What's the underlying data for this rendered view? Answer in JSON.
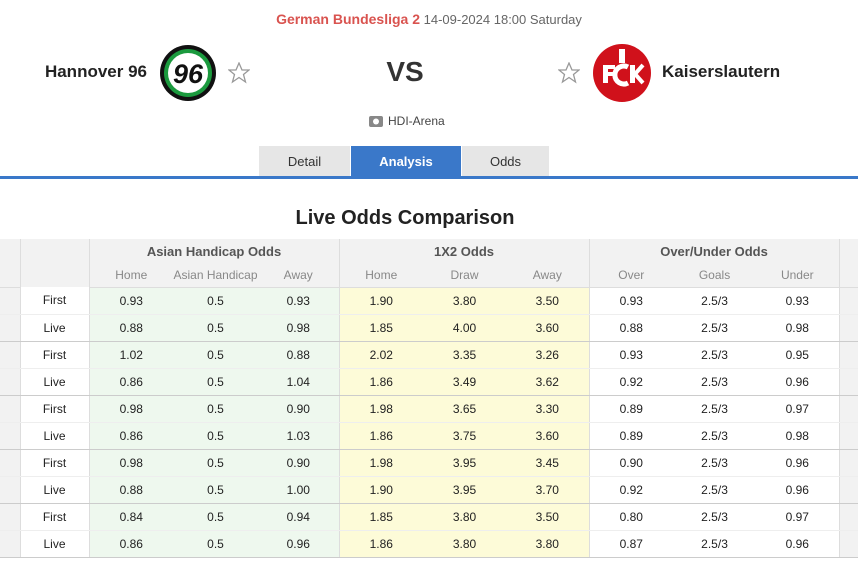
{
  "header": {
    "league": "German Bundesliga 2",
    "datetime": "14-09-2024 18:00 Saturday",
    "home_team": "Hannover 96",
    "home_logo_text": "96",
    "vs": "VS",
    "away_team": "Kaiserslautern",
    "venue": "HDI-Arena"
  },
  "tabs": [
    "Detail",
    "Analysis",
    "Odds"
  ],
  "section_title": "Live Odds Comparison",
  "table": {
    "groups": [
      "Asian Handicap Odds",
      "1X2 Odds",
      "Over/Under Odds"
    ],
    "columns": [
      "Home",
      "Asian Handicap",
      "Away",
      "Home",
      "Draw",
      "Away",
      "Over",
      "Goals",
      "Under"
    ],
    "rows": [
      [
        "First",
        "0.93",
        "0.5",
        "0.93",
        "1.90",
        "3.80",
        "3.50",
        "0.93",
        "2.5/3",
        "0.93"
      ],
      [
        "Live",
        "0.88",
        "0.5",
        "0.98",
        "1.85",
        "4.00",
        "3.60",
        "0.88",
        "2.5/3",
        "0.98"
      ],
      [
        "First",
        "1.02",
        "0.5",
        "0.88",
        "2.02",
        "3.35",
        "3.26",
        "0.93",
        "2.5/3",
        "0.95"
      ],
      [
        "Live",
        "0.86",
        "0.5",
        "1.04",
        "1.86",
        "3.49",
        "3.62",
        "0.92",
        "2.5/3",
        "0.96"
      ],
      [
        "First",
        "0.98",
        "0.5",
        "0.90",
        "1.98",
        "3.65",
        "3.30",
        "0.89",
        "2.5/3",
        "0.97"
      ],
      [
        "Live",
        "0.86",
        "0.5",
        "1.03",
        "1.86",
        "3.75",
        "3.60",
        "0.89",
        "2.5/3",
        "0.98"
      ],
      [
        "First",
        "0.98",
        "0.5",
        "0.90",
        "1.98",
        "3.95",
        "3.45",
        "0.90",
        "2.5/3",
        "0.96"
      ],
      [
        "Live",
        "0.88",
        "0.5",
        "1.00",
        "1.90",
        "3.95",
        "3.70",
        "0.92",
        "2.5/3",
        "0.96"
      ],
      [
        "First",
        "0.84",
        "0.5",
        "0.94",
        "1.85",
        "3.80",
        "3.50",
        "0.80",
        "2.5/3",
        "0.97"
      ],
      [
        "Live",
        "0.86",
        "0.5",
        "0.96",
        "1.86",
        "3.80",
        "3.80",
        "0.87",
        "2.5/3",
        "0.96"
      ]
    ]
  }
}
